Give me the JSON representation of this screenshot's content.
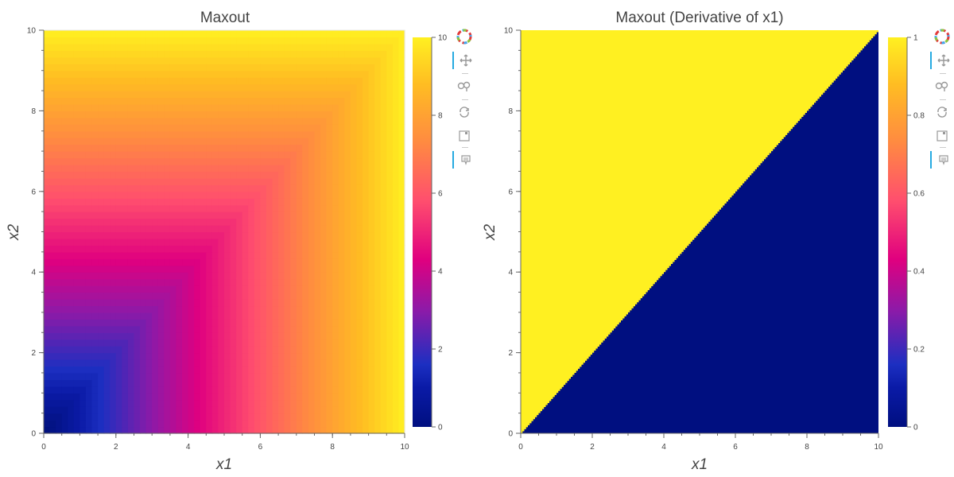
{
  "chart_data": [
    {
      "type": "heatmap",
      "title": "Maxout",
      "xlabel": "x1",
      "ylabel": "x2",
      "xlim": [
        0,
        10
      ],
      "ylim": [
        0,
        10
      ],
      "xticks": [
        "0",
        "2",
        "4",
        "6",
        "8",
        "10"
      ],
      "yticks": [
        "0",
        "2",
        "4",
        "6",
        "8",
        "10"
      ],
      "function": "max(x1, x2)",
      "colorbar": {
        "range": [
          0,
          10
        ],
        "ticks": [
          "0",
          "2",
          "4",
          "6",
          "8",
          "10"
        ]
      },
      "colormap": "plasma-like"
    },
    {
      "type": "heatmap",
      "title": "Maxout (Derivative of x1)",
      "xlabel": "x1",
      "ylabel": "x2",
      "xlim": [
        0,
        10
      ],
      "ylim": [
        0,
        10
      ],
      "xticks": [
        "0",
        "2",
        "4",
        "6",
        "8",
        "10"
      ],
      "yticks": [
        "0",
        "2",
        "4",
        "6",
        "8",
        "10"
      ],
      "function": "1 if x2 > x1 else 0",
      "colorbar": {
        "range": [
          0,
          1
        ],
        "ticks": [
          "0",
          "0.2",
          "0.4",
          "0.6",
          "0.8",
          "1"
        ]
      },
      "colormap": "plasma-like"
    }
  ],
  "toolbar": {
    "icons": [
      "bokeh-logo-icon",
      "pan-icon",
      "wheel-zoom-icon",
      "reset-icon",
      "save-icon",
      "hover-icon"
    ]
  },
  "colors": {
    "colormap_stops": [
      "#00107a",
      "#0b1aa6",
      "#1c2fc1",
      "#8d1aa8",
      "#e0007f",
      "#ff4e6e",
      "#ff8a41",
      "#ffbd22",
      "#fff021"
    ],
    "low": "#000f80",
    "high": "#fff021",
    "accent": "#26aae1"
  }
}
